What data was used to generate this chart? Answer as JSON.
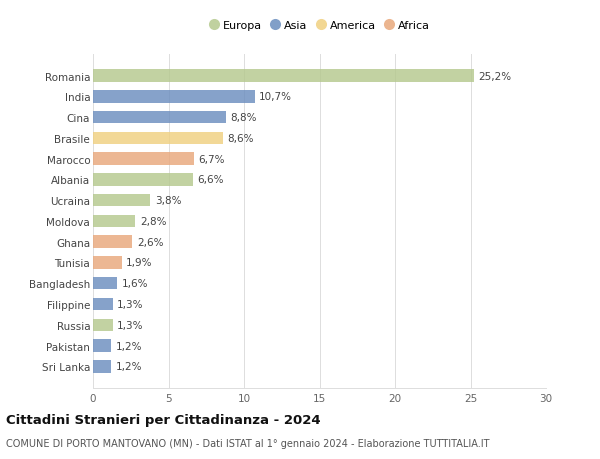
{
  "countries": [
    "Romania",
    "India",
    "Cina",
    "Brasile",
    "Marocco",
    "Albania",
    "Ucraina",
    "Moldova",
    "Ghana",
    "Tunisia",
    "Bangladesh",
    "Filippine",
    "Russia",
    "Pakistan",
    "Sri Lanka"
  ],
  "values": [
    25.2,
    10.7,
    8.8,
    8.6,
    6.7,
    6.6,
    3.8,
    2.8,
    2.6,
    1.9,
    1.6,
    1.3,
    1.3,
    1.2,
    1.2
  ],
  "labels": [
    "25,2%",
    "10,7%",
    "8,8%",
    "8,6%",
    "6,7%",
    "6,6%",
    "3,8%",
    "2,8%",
    "2,6%",
    "1,9%",
    "1,6%",
    "1,3%",
    "1,3%",
    "1,2%",
    "1,2%"
  ],
  "colors": [
    "#b5c98e",
    "#6b8ebf",
    "#6b8ebf",
    "#f0d080",
    "#e8a87c",
    "#b5c98e",
    "#b5c98e",
    "#b5c98e",
    "#e8a87c",
    "#e8a87c",
    "#6b8ebf",
    "#6b8ebf",
    "#b5c98e",
    "#6b8ebf",
    "#6b8ebf"
  ],
  "legend": [
    {
      "label": "Europa",
      "color": "#b5c98e"
    },
    {
      "label": "Asia",
      "color": "#6b8ebf"
    },
    {
      "label": "America",
      "color": "#f0d080"
    },
    {
      "label": "Africa",
      "color": "#e8a87c"
    }
  ],
  "xlim": [
    0,
    30
  ],
  "xticks": [
    0,
    5,
    10,
    15,
    20,
    25,
    30
  ],
  "title": "Cittadini Stranieri per Cittadinanza - 2024",
  "subtitle": "COMUNE DI PORTO MANTOVANO (MN) - Dati ISTAT al 1° gennaio 2024 - Elaborazione TUTTITALIA.IT",
  "background_color": "#ffffff",
  "grid_color": "#dddddd",
  "bar_height": 0.6,
  "title_fontsize": 9.5,
  "subtitle_fontsize": 7,
  "label_fontsize": 7.5,
  "tick_fontsize": 7.5,
  "value_fontsize": 7.5,
  "legend_fontsize": 8
}
